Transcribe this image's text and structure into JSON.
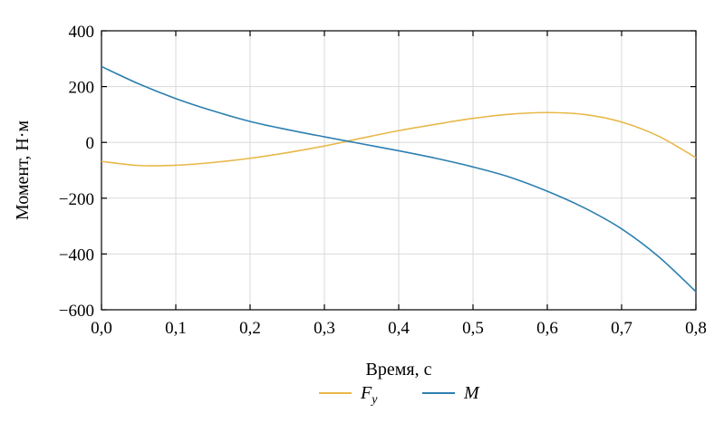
{
  "chart_data": {
    "type": "line",
    "title": "",
    "xlabel": "Время, с",
    "ylabel": "Момент, Н·м",
    "xlim": [
      0.0,
      0.8
    ],
    "ylim": [
      -600,
      400
    ],
    "xticks": [
      0.0,
      0.1,
      0.2,
      0.3,
      0.4,
      0.5,
      0.6,
      0.7,
      0.8
    ],
    "xtick_labels": [
      "0,0",
      "0,1",
      "0,2",
      "0,3",
      "0,4",
      "0,5",
      "0,6",
      "0,7",
      "0,8"
    ],
    "yticks": [
      400,
      200,
      0,
      -200,
      -400,
      -600
    ],
    "ytick_labels": [
      "400",
      "200",
      "0",
      "−200",
      "−400",
      "−600"
    ],
    "grid": true,
    "legend": {
      "placement": "bottom-center"
    },
    "series": [
      {
        "name": "F",
        "name_subscript": "y",
        "color": "#e8b84a",
        "x": [
          0.0,
          0.05,
          0.1,
          0.15,
          0.2,
          0.25,
          0.3,
          0.35,
          0.4,
          0.45,
          0.5,
          0.55,
          0.6,
          0.65,
          0.7,
          0.75,
          0.8
        ],
        "y": [
          -68,
          -83,
          -82,
          -72,
          -57,
          -37,
          -13,
          15,
          42,
          65,
          86,
          101,
          107,
          100,
          73,
          22,
          -55
        ]
      },
      {
        "name": "M",
        "name_subscript": "",
        "color": "#2c7fb0",
        "x": [
          0.0,
          0.05,
          0.1,
          0.15,
          0.2,
          0.25,
          0.3,
          0.35,
          0.4,
          0.45,
          0.5,
          0.55,
          0.6,
          0.65,
          0.7,
          0.75,
          0.8
        ],
        "y": [
          272,
          210,
          157,
          113,
          75,
          46,
          20,
          -5,
          -30,
          -57,
          -88,
          -125,
          -175,
          -235,
          -310,
          -410,
          -535
        ]
      }
    ]
  }
}
